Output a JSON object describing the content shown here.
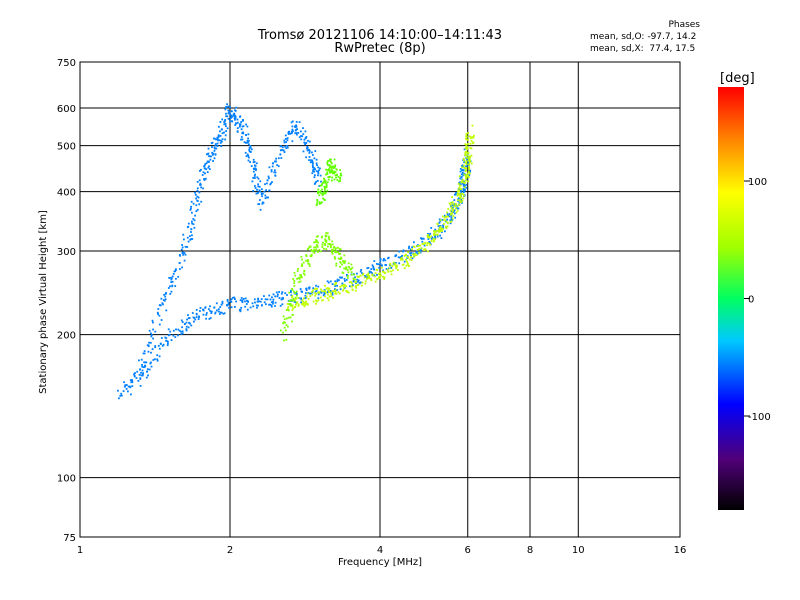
{
  "title": "Tromsø 20121106 14:10:00–14:11:43",
  "subtitle": "RwPretec (8p)",
  "stats": {
    "heading": "Phases",
    "o_mode": "mean, sd,O: -97.7, 14.2",
    "x_mode": "mean, sd,X:  77.4, 17.5"
  },
  "colorbar": {
    "unit": "[deg]",
    "range": [
      -180,
      180
    ],
    "ticks": [
      {
        "value": 100,
        "label": "100"
      },
      {
        "value": 0,
        "label": "0"
      },
      {
        "value": -100,
        "label": "-100"
      }
    ]
  },
  "colors": {
    "o_mode": "#1e3cf0",
    "x_mode": "#c8f01e",
    "x_mode_high": "#5af046"
  },
  "chart_data": {
    "type": "scatter",
    "xlabel": "Frequency [MHz]",
    "ylabel": "Stationary phase Virtual Height [km]",
    "xscale": "log",
    "yscale": "log",
    "xlim": [
      1,
      16
    ],
    "ylim": [
      75,
      750
    ],
    "xticks": [
      1,
      2,
      4,
      6,
      8,
      10,
      16
    ],
    "yticks": [
      75,
      100,
      200,
      300,
      400,
      500,
      600,
      750
    ],
    "grid": true,
    "legend": "colorbar-right",
    "color_variable": "Phase [deg]",
    "traces": [
      {
        "mode": "O",
        "phase": -100,
        "x": [
          1.2,
          1.35,
          1.55,
          1.75,
          2.0,
          2.3,
          2.6,
          3.0,
          3.5,
          4.0,
          4.6,
          5.2,
          5.6,
          5.8,
          5.9,
          6.0
        ],
        "y": [
          150,
          170,
          205,
          222,
          232,
          235,
          240,
          248,
          262,
          280,
          300,
          330,
          365,
          400,
          440,
          480
        ]
      },
      {
        "mode": "O",
        "phase": -100,
        "x": [
          1.3,
          1.45,
          1.6,
          1.7,
          1.8,
          1.9,
          2.0,
          2.1,
          2.2,
          2.3,
          2.5,
          2.7,
          2.9,
          3.0
        ],
        "y": [
          160,
          230,
          290,
          380,
          470,
          520,
          600,
          550,
          470,
          380,
          480,
          560,
          480,
          420
        ]
      },
      {
        "mode": "X",
        "phase": 80,
        "x": [
          2.6,
          2.9,
          3.2,
          3.6,
          4.0,
          4.5,
          5.0,
          5.4,
          5.7,
          5.9,
          6.0,
          6.05
        ],
        "y": [
          232,
          240,
          248,
          258,
          270,
          290,
          315,
          345,
          385,
          430,
          480,
          540
        ]
      },
      {
        "mode": "X",
        "phase": 60,
        "x": [
          2.55,
          2.7,
          2.9,
          3.1,
          3.3,
          3.5
        ],
        "y": [
          200,
          260,
          300,
          320,
          290,
          270
        ]
      },
      {
        "mode": "X",
        "phase": 50,
        "x": [
          3.0,
          3.1,
          3.2,
          3.3
        ],
        "y": [
          380,
          420,
          460,
          430
        ]
      }
    ]
  }
}
